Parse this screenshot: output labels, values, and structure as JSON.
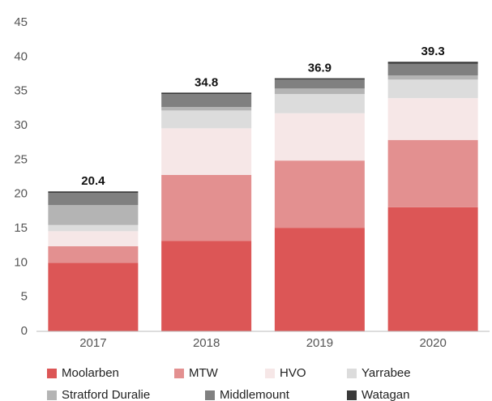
{
  "chart_data": {
    "type": "stacked_bar",
    "categories": [
      "2017",
      "2018",
      "2019",
      "2020"
    ],
    "series": [
      {
        "name": "Moolarben",
        "color": "#dc5656",
        "values": [
          10.0,
          13.2,
          15.1,
          18.1
        ]
      },
      {
        "name": "MTW",
        "color": "#e39090",
        "values": [
          2.4,
          9.6,
          9.8,
          9.8
        ]
      },
      {
        "name": "HVO",
        "color": "#f6e7e7",
        "values": [
          2.2,
          6.8,
          6.9,
          6.1
        ]
      },
      {
        "name": "Yarrabee",
        "color": "#dcdcdc",
        "values": [
          0.9,
          2.6,
          2.8,
          2.7
        ]
      },
      {
        "name": "Stratford Duralie",
        "color": "#b4b4b4",
        "values": [
          2.9,
          0.5,
          0.8,
          0.6
        ]
      },
      {
        "name": "Middlemount",
        "color": "#808080",
        "values": [
          1.8,
          1.9,
          1.3,
          1.7
        ]
      },
      {
        "name": "Watagan",
        "color": "#3a3a3a",
        "values": [
          0.2,
          0.2,
          0.2,
          0.3
        ]
      }
    ],
    "totals": [
      20.4,
      34.8,
      36.9,
      39.3
    ],
    "ylim": [
      0,
      45
    ],
    "yticks": [
      0,
      5,
      10,
      15,
      20,
      25,
      30,
      35,
      40,
      45
    ],
    "grid": false
  }
}
